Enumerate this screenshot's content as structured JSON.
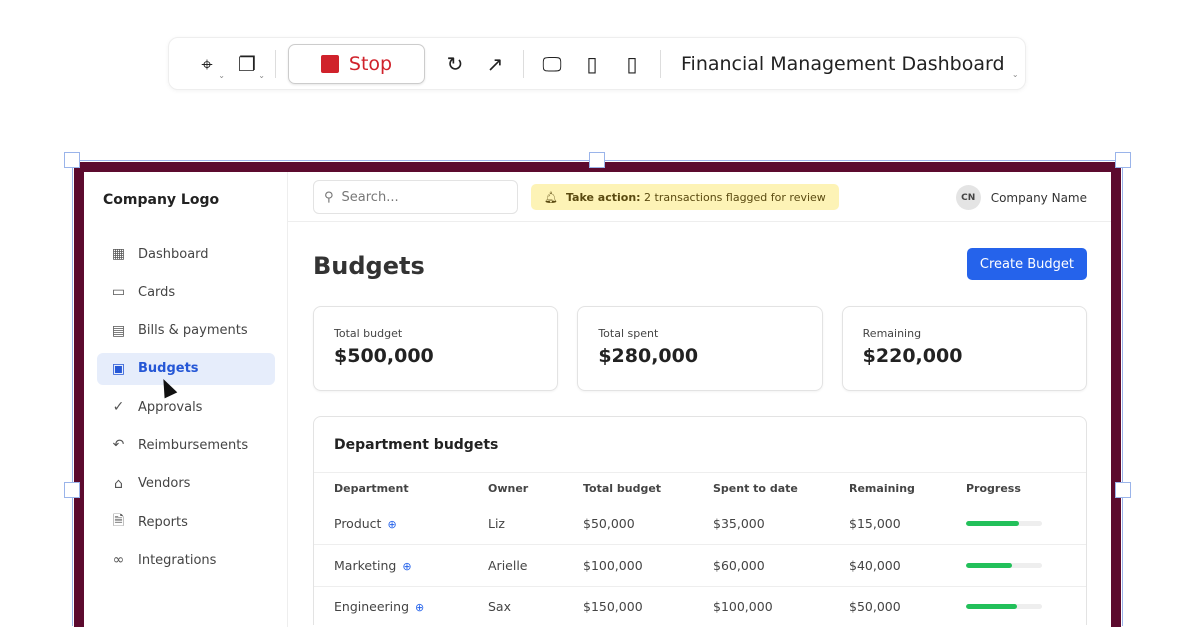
{
  "toolbar": {
    "stop_label": "Stop",
    "title": "Financial Management Dashboard"
  },
  "sidebar": {
    "logo": "Company Logo",
    "items": [
      {
        "label": "Dashboard",
        "icon": "grid-icon"
      },
      {
        "label": "Cards",
        "icon": "card-icon"
      },
      {
        "label": "Bills & payments",
        "icon": "document-icon"
      },
      {
        "label": "Budgets",
        "icon": "money-icon",
        "active": true
      },
      {
        "label": "Approvals",
        "icon": "check-circle-icon"
      },
      {
        "label": "Reimbursements",
        "icon": "undo-icon"
      },
      {
        "label": "Vendors",
        "icon": "store-icon"
      },
      {
        "label": "Reports",
        "icon": "file-icon"
      },
      {
        "label": "Integrations",
        "icon": "link-icon"
      }
    ]
  },
  "topbar": {
    "search_placeholder": "Search...",
    "alert_strong": "Take action:",
    "alert_text": "2 transactions flagged for review",
    "avatar_initials": "CN",
    "company_name": "Company Name"
  },
  "main": {
    "title": "Budgets",
    "create_label": "Create Budget",
    "stats": [
      {
        "label": "Total budget",
        "value": "$500,000"
      },
      {
        "label": "Total spent",
        "value": "$280,000"
      },
      {
        "label": "Remaining",
        "value": "$220,000"
      }
    ],
    "table": {
      "title": "Department budgets",
      "headers": [
        "Department",
        "Owner",
        "Total budget",
        "Spent to date",
        "Remaining",
        "Progress"
      ],
      "rows": [
        {
          "department": "Product",
          "owner": "Liz",
          "total": "$50,000",
          "spent": "$35,000",
          "remaining": "$15,000",
          "progress": 70
        },
        {
          "department": "Marketing",
          "owner": "Arielle",
          "total": "$100,000",
          "spent": "$60,000",
          "remaining": "$40,000",
          "progress": 60
        },
        {
          "department": "Engineering",
          "owner": "Sax",
          "total": "$150,000",
          "spent": "$100,000",
          "remaining": "$50,000",
          "progress": 67
        }
      ]
    }
  },
  "colors": {
    "accent": "#2563eb",
    "frame": "#5c0a2e",
    "progress": "#22c05a",
    "stop": "#d0222b",
    "alert_bg": "#fdf3b6"
  }
}
